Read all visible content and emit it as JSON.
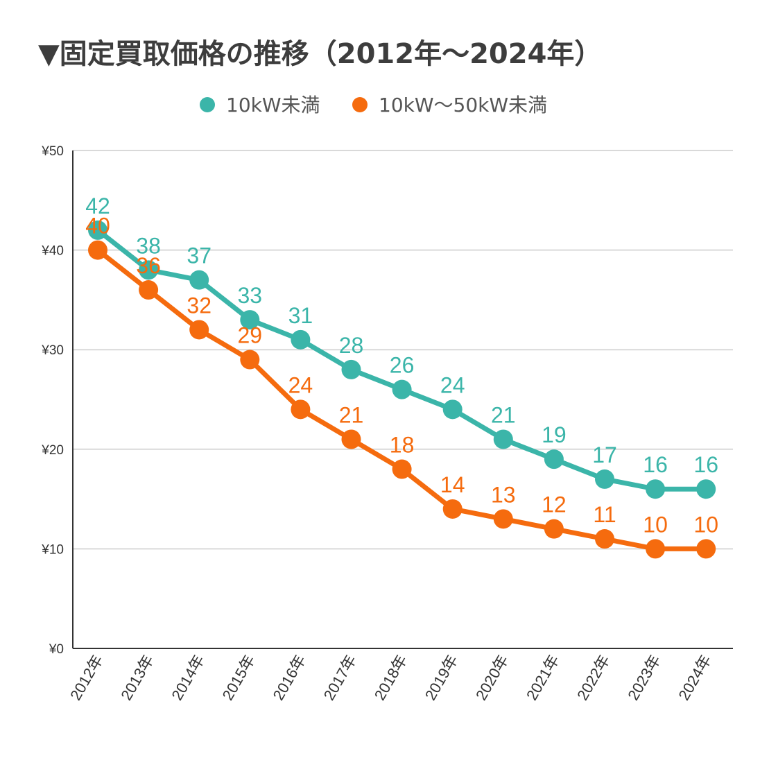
{
  "chart_data": {
    "type": "line",
    "title": "▼固定買取価格の推移（2012年〜2024年）",
    "categories": [
      "2012年",
      "2013年",
      "2014年",
      "2015年",
      "2016年",
      "2017年",
      "2018年",
      "2019年",
      "2020年",
      "2021年",
      "2022年",
      "2023年",
      "2024年"
    ],
    "series": [
      {
        "name": "10kW未満",
        "color": "#3bb5a9",
        "values": [
          42,
          38,
          37,
          33,
          31,
          28,
          26,
          24,
          21,
          19,
          17,
          16,
          16
        ]
      },
      {
        "name": "10kW〜50kW未満",
        "color": "#f56b0e",
        "values": [
          40,
          36,
          32,
          29,
          24,
          21,
          18,
          14,
          13,
          12,
          11,
          10,
          10
        ]
      }
    ],
    "yticks": [
      "¥0",
      "¥10",
      "¥20",
      "¥30",
      "¥40",
      "¥50"
    ],
    "ytick_values": [
      0,
      10,
      20,
      30,
      40,
      50
    ],
    "ylim": [
      0,
      50
    ],
    "xlabel": "",
    "ylabel": "",
    "grid": true,
    "legend_position": "top-center"
  }
}
